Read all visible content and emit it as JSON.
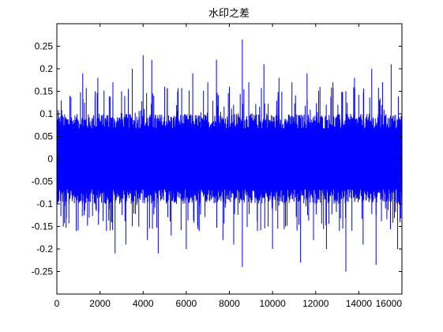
{
  "chart_data": {
    "type": "line",
    "title": "水印之差",
    "xlabel": "",
    "ylabel": "",
    "xlim": [
      0,
      16000
    ],
    "ylim": [
      -0.3,
      0.3
    ],
    "x_ticks": [
      0,
      2000,
      4000,
      6000,
      8000,
      10000,
      12000,
      14000,
      16000
    ],
    "x_tick_labels": [
      "0",
      "2000",
      "4000",
      "6000",
      "8000",
      "10000",
      "12000",
      "14000",
      "16000"
    ],
    "y_ticks": [
      0.25,
      0.2,
      0.15,
      0.1,
      0.05,
      0,
      -0.05,
      -0.1,
      -0.15,
      -0.2,
      -0.25
    ],
    "y_tick_labels": [
      "0.25",
      "0.2",
      "0.15",
      "0.1",
      "0.05",
      "0",
      "-0.05",
      "-0.1",
      "-0.15",
      "-0.2",
      "-0.25"
    ],
    "grid": false,
    "legend": "none",
    "series": [
      {
        "color": "#0000ff",
        "core_range": [
          -0.08,
          0.08
        ],
        "spikes": [
          {
            "x": 200,
            "y": 0.13
          },
          {
            "x": 300,
            "y": -0.15
          },
          {
            "x": 600,
            "y": 0.14
          },
          {
            "x": 900,
            "y": -0.16
          },
          {
            "x": 1200,
            "y": 0.19
          },
          {
            "x": 1500,
            "y": -0.13
          },
          {
            "x": 1900,
            "y": 0.18
          },
          {
            "x": 2300,
            "y": -0.16
          },
          {
            "x": 2600,
            "y": 0.17
          },
          {
            "x": 2700,
            "y": -0.21
          },
          {
            "x": 3000,
            "y": 0.15
          },
          {
            "x": 3200,
            "y": -0.19
          },
          {
            "x": 3500,
            "y": 0.2
          },
          {
            "x": 3800,
            "y": -0.15
          },
          {
            "x": 4000,
            "y": 0.23
          },
          {
            "x": 4200,
            "y": -0.18
          },
          {
            "x": 4400,
            "y": 0.22
          },
          {
            "x": 4700,
            "y": -0.21
          },
          {
            "x": 5000,
            "y": 0.16
          },
          {
            "x": 5300,
            "y": -0.17
          },
          {
            "x": 5600,
            "y": 0.15
          },
          {
            "x": 6000,
            "y": -0.2
          },
          {
            "x": 6300,
            "y": 0.19
          },
          {
            "x": 6600,
            "y": -0.16
          },
          {
            "x": 7000,
            "y": 0.17
          },
          {
            "x": 7400,
            "y": 0.22
          },
          {
            "x": 7700,
            "y": -0.18
          },
          {
            "x": 8000,
            "y": 0.16
          },
          {
            "x": 8200,
            "y": -0.19
          },
          {
            "x": 8600,
            "y": 0.265
          },
          {
            "x": 8600,
            "y": -0.24
          },
          {
            "x": 8900,
            "y": 0.17
          },
          {
            "x": 9300,
            "y": -0.16
          },
          {
            "x": 9600,
            "y": 0.21
          },
          {
            "x": 10000,
            "y": -0.2
          },
          {
            "x": 10300,
            "y": 0.18
          },
          {
            "x": 10600,
            "y": -0.15
          },
          {
            "x": 10900,
            "y": 0.17
          },
          {
            "x": 11300,
            "y": -0.23
          },
          {
            "x": 11600,
            "y": 0.19
          },
          {
            "x": 11900,
            "y": -0.18
          },
          {
            "x": 12200,
            "y": 0.16
          },
          {
            "x": 12500,
            "y": -0.2
          },
          {
            "x": 12800,
            "y": 0.17
          },
          {
            "x": 13100,
            "y": -0.16
          },
          {
            "x": 13400,
            "y": 0.15
          },
          {
            "x": 13400,
            "y": -0.25
          },
          {
            "x": 13800,
            "y": 0.18
          },
          {
            "x": 14200,
            "y": -0.19
          },
          {
            "x": 14600,
            "y": 0.2
          },
          {
            "x": 14800,
            "y": -0.235
          },
          {
            "x": 15100,
            "y": 0.17
          },
          {
            "x": 15500,
            "y": 0.21
          },
          {
            "x": 15800,
            "y": -0.2
          }
        ]
      }
    ]
  }
}
